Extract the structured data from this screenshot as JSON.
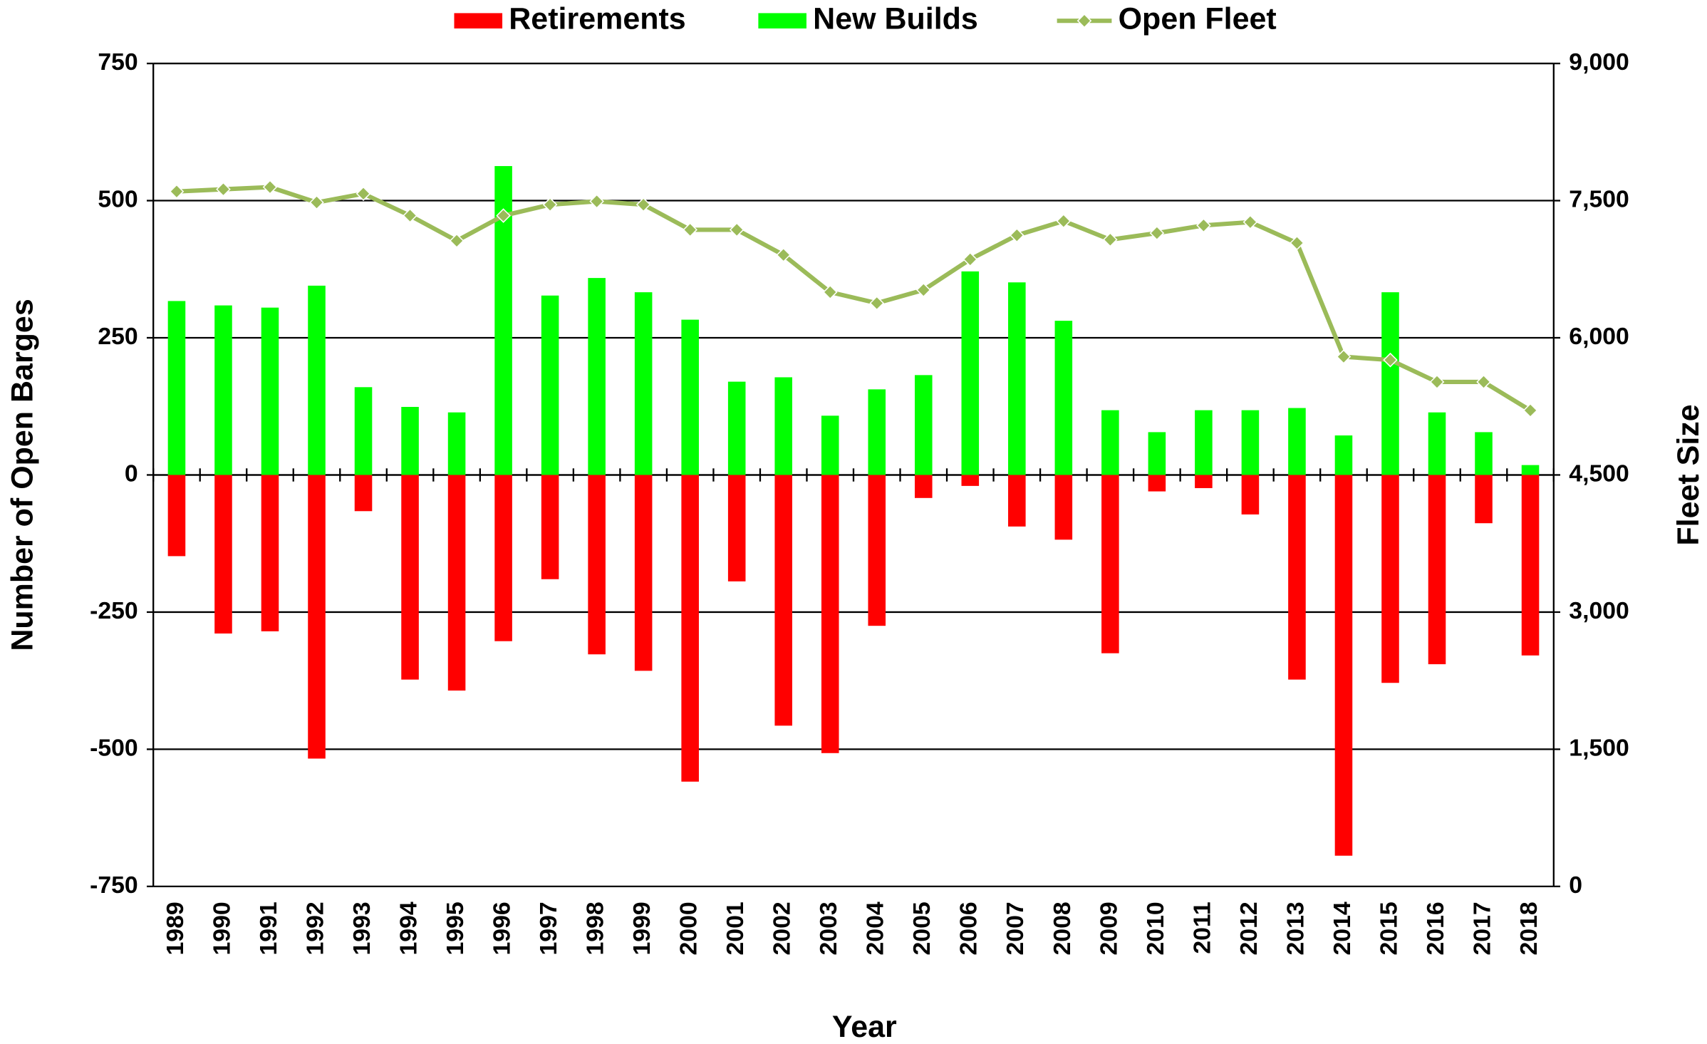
{
  "chart_data": {
    "type": "bar",
    "categories": [
      "1989",
      "1990",
      "1991",
      "1992",
      "1993",
      "1994",
      "1995",
      "1996",
      "1997",
      "1998",
      "1999",
      "2000",
      "2001",
      "2002",
      "2003",
      "2004",
      "2005",
      "2006",
      "2007",
      "2008",
      "2009",
      "2010",
      "2011",
      "2012",
      "2013",
      "2014",
      "2015",
      "2016",
      "2017",
      "2018"
    ],
    "x_label": "Year",
    "y_label": "Number of Open Barges",
    "y2_label": "Fleet Size",
    "series": [
      {
        "name": "Retirements",
        "color": "#ff0000",
        "type": "bar",
        "values": [
          -148,
          -289,
          -285,
          -517,
          -66,
          -373,
          -393,
          -303,
          -190,
          -327,
          -357,
          -559,
          -194,
          -457,
          -507,
          -275,
          -42,
          -20,
          -94,
          -118,
          -325,
          -30,
          -24,
          -72,
          -373,
          -694,
          -379,
          -345,
          -88,
          -329
        ]
      },
      {
        "name": "New Builds",
        "color": "#00ff00",
        "type": "bar",
        "values": [
          317,
          309,
          305,
          345,
          160,
          124,
          114,
          563,
          327,
          359,
          333,
          283,
          170,
          178,
          108,
          156,
          182,
          371,
          351,
          281,
          118,
          78,
          118,
          118,
          122,
          72,
          333,
          114,
          78,
          18
        ]
      },
      {
        "name": "Open Fleet",
        "color": "#9bbb59",
        "type": "line",
        "axis": "y2",
        "values": [
          7600,
          7624,
          7648,
          7480,
          7576,
          7336,
          7061,
          7336,
          7456,
          7492,
          7456,
          7181,
          7181,
          6906,
          6499,
          6379,
          6523,
          6858,
          7121,
          7277,
          7073,
          7145,
          7229,
          7265,
          7037,
          5793,
          5757,
          5517,
          5517,
          5206
        ]
      }
    ],
    "ylim": [
      -750,
      750
    ],
    "yticks": [
      -750,
      -500,
      -250,
      0,
      250,
      500,
      750
    ],
    "y2lim": [
      0,
      9000
    ],
    "y2ticks": [
      0,
      {
        "value": 1500,
        "label": "1,500"
      },
      {
        "value": 3000,
        "label": "3,000"
      },
      {
        "value": 4500,
        "label": "4,500"
      },
      {
        "value": 6000,
        "label": "6,000"
      },
      {
        "value": 7500,
        "label": "7,500"
      },
      {
        "value": 9000,
        "label": "9,000"
      }
    ],
    "grid": true,
    "legend": "top"
  }
}
